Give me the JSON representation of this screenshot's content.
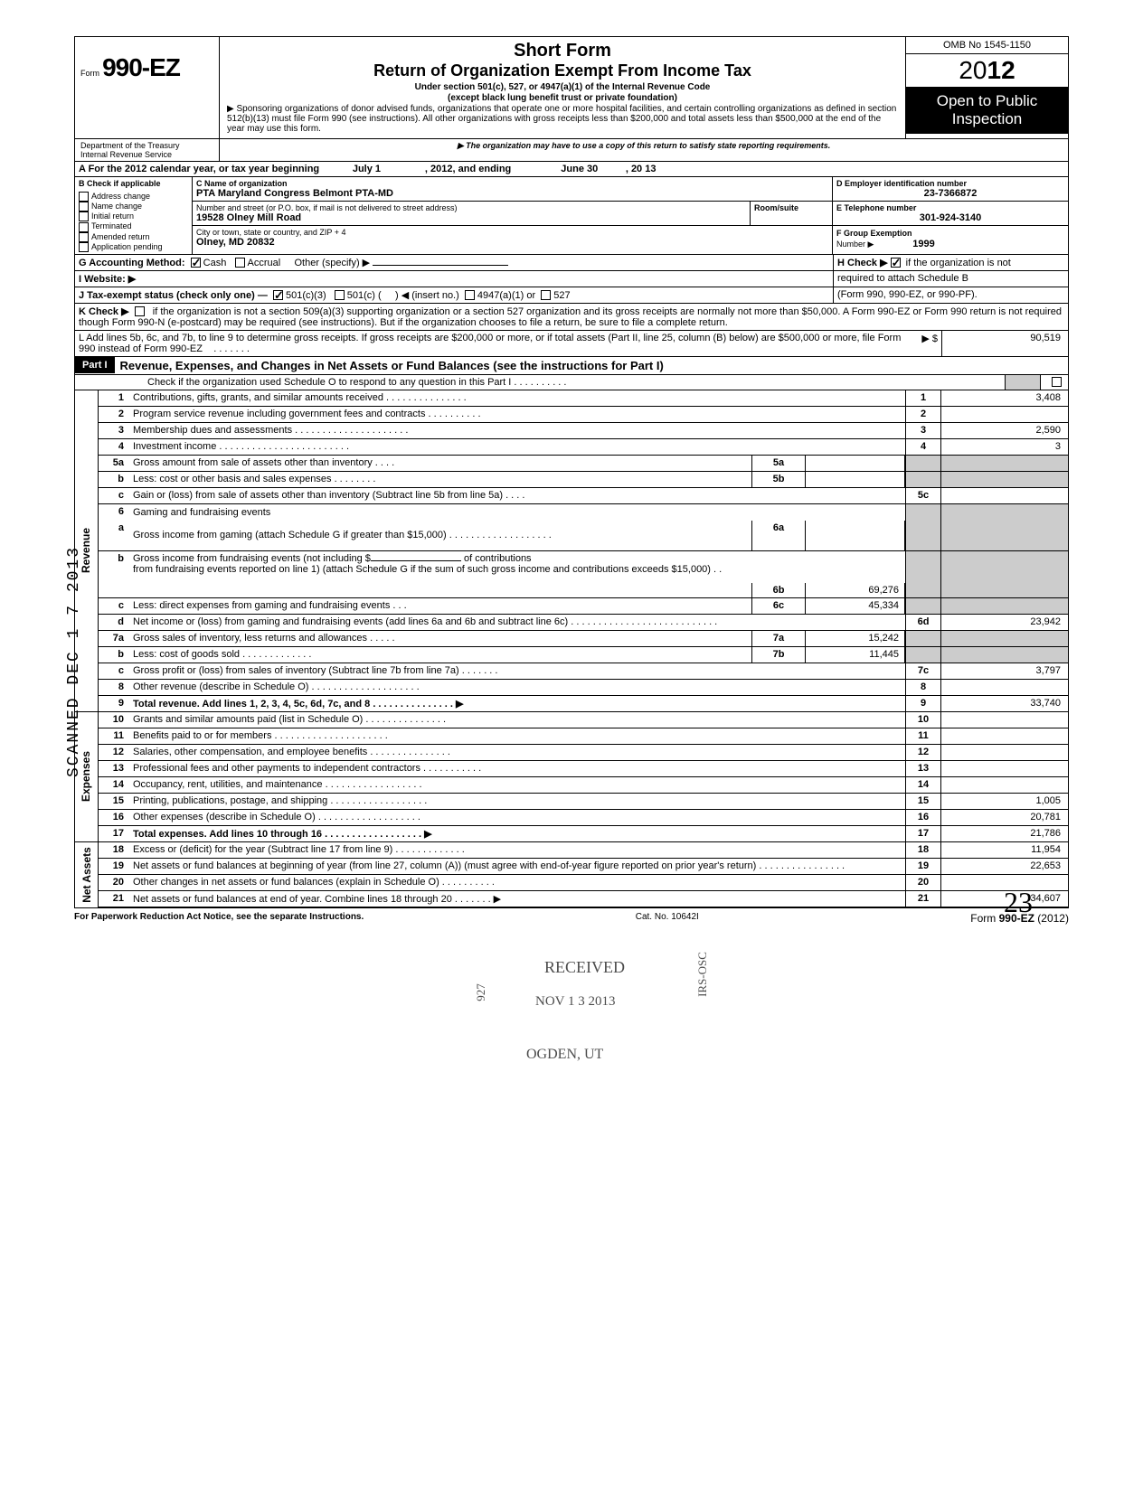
{
  "side_stamp": "SCANNED DEC 1 7 2013",
  "header": {
    "form_prefix": "Form",
    "form_number": "990-EZ",
    "title1": "Short Form",
    "title2": "Return of Organization Exempt From Income Tax",
    "sub1": "Under section 501(c), 527, or 4947(a)(1) of the Internal Revenue Code",
    "sub2": "(except black lung benefit trust or private foundation)",
    "sub3": "Sponsoring organizations of donor advised funds, organizations that operate one or more hospital facilities, and certain controlling organizations as defined in section 512(b)(13) must file Form 990 (see instructions). All other organizations with gross receipts less than $200,000 and total assets less than $500,000 at the end of the year may use this form.",
    "sub4": "The organization may have to use a copy of this return to satisfy state reporting requirements.",
    "omb": "OMB No  1545-1150",
    "year_prefix": "20",
    "year_bold": "12",
    "open1": "Open to Public",
    "open2": "Inspection",
    "dept1": "Department of the Treasury",
    "dept2": "Internal Revenue Service"
  },
  "line_a": {
    "label": "A For the 2012 calendar year, or tax year beginning",
    "begin": "July 1",
    "mid": ", 2012, and ending",
    "end": "June 30",
    "yr": ", 20   13"
  },
  "section_b": {
    "label": "B Check if applicable",
    "items": [
      "Address change",
      "Name change",
      "Initial return",
      "Terminated",
      "Amended return",
      "Application pending"
    ],
    "c_label": "C  Name of organization",
    "org_name": "PTA Maryland Congress Belmont PTA-MD",
    "addr_label": "Number and street (or P.O. box, if mail is not delivered to street address)",
    "room_label": "Room/suite",
    "street": "19528 Olney Mill Road",
    "city_label": "City or town, state or country, and ZIP + 4",
    "city": "Olney, MD 20832",
    "d_label": "D Employer identification number",
    "ein": "23-7366872",
    "e_label": "E  Telephone number",
    "phone": "301-924-3140",
    "f_label": "F  Group Exemption",
    "f_label2": "Number ▶",
    "group_num": "1999"
  },
  "line_g": {
    "label": "G  Accounting Method:",
    "cash": "Cash",
    "accrual": "Accrual",
    "other": "Other (specify) ▶"
  },
  "line_h": {
    "label": "H  Check ▶",
    "text": "if the organization is not",
    "text2": "required to attach Schedule B",
    "text3": "(Form 990, 990-EZ, or 990-PF)."
  },
  "line_i": {
    "label": "I   Website: ▶"
  },
  "line_j": {
    "label": "J  Tax-exempt status (check only one) —",
    "opt1": "501(c)(3)",
    "opt2": "501(c) (",
    "insert": ") ◀ (insert no.)",
    "opt3": "4947(a)(1) or",
    "opt4": "527"
  },
  "line_k": {
    "label": "K  Check ▶",
    "text": "if the organization is not a section 509(a)(3) supporting organization or a section 527 organization and its gross receipts are normally not more than $50,000. A Form 990-EZ or Form 990 return is not required though Form 990-N (e-postcard) may be required (see instructions). But if the organization chooses to file a return, be sure to file a complete return."
  },
  "line_l": {
    "text": "L  Add lines 5b, 6c, and 7b, to line 9 to determine gross receipts. If gross receipts are $200,000 or more, or if total assets (Part II, line 25, column (B) below) are $500,000 or more, file Form 990 instead of Form 990-EZ",
    "dots": ".   .   .   .   .   .   .",
    "arrow": "▶  $",
    "amount": "90,519"
  },
  "part1": {
    "label": "Part I",
    "title": "Revenue, Expenses, and Changes in Net Assets or Fund Balances (see the instructions for Part I)",
    "check": "Check if the organization used Schedule O to respond to any question in this Part I   .   .   .   .   .   .   .   .   .   ."
  },
  "vert": {
    "revenue": "Revenue",
    "expenses": "Expenses",
    "netassets": "Net Assets"
  },
  "lines": {
    "1": {
      "n": "1",
      "d": "Contributions, gifts, grants, and similar amounts received .   .   .   .   .   .   .   .   .   .   .   .   .   .   .",
      "box": "1",
      "amt": "3,408"
    },
    "2": {
      "n": "2",
      "d": "Program service revenue including government fees and contracts    .   .   .   .   .   .   .   .   .   .",
      "box": "2",
      "amt": ""
    },
    "3": {
      "n": "3",
      "d": "Membership dues and assessments .   .   .   .   .   .   .   .   .   .   .   .   .   .   .   .   .   .   .   .   .",
      "box": "3",
      "amt": "2,590"
    },
    "4": {
      "n": "4",
      "d": "Investment income     .   .   .   .   .   .   .   .   .   .   .   .   .   .   .   .   .   .   .   .   .   .   .   .",
      "box": "4",
      "amt": "3"
    },
    "5a": {
      "n": "5a",
      "d": "Gross amount from sale of assets other than inventory    .   .   .   .",
      "ib": "5a",
      "iv": ""
    },
    "5b": {
      "n": "b",
      "d": "Less: cost or other basis and sales expenses .   .   .   .   .   .   .   .",
      "ib": "5b",
      "iv": ""
    },
    "5c": {
      "n": "c",
      "d": "Gain or (loss) from sale of assets other than inventory (Subtract line 5b from line 5a) .   .   .   .",
      "box": "5c",
      "amt": ""
    },
    "6": {
      "n": "6",
      "d": "Gaming and fundraising events"
    },
    "6a": {
      "n": "a",
      "d": "Gross income from gaming (attach Schedule G if greater than $15,000) .   .   .   .   .   .   .   .   .   .   .   .   .   .   .   .   .   .   .",
      "ib": "6a",
      "iv": ""
    },
    "6b": {
      "n": "b",
      "d1": "Gross income from fundraising events (not including  $",
      "d2": "of contributions",
      "d3": "from fundraising events reported on line 1) (attach Schedule G if the sum of such gross income and contributions exceeds $15,000) .   .",
      "ib": "6b",
      "iv": "69,276"
    },
    "6c": {
      "n": "c",
      "d": "Less: direct expenses from gaming and fundraising events    .   .   .",
      "ib": "6c",
      "iv": "45,334"
    },
    "6d": {
      "n": "d",
      "d": "Net income or (loss) from gaming and fundraising events (add lines 6a and 6b and subtract line 6c)    .   .   .   .   .   .   .   .   .   .   .   .   .   .   .   .   .   .   .   .   .   .   .   .   .   .   .",
      "box": "6d",
      "amt": "23,942"
    },
    "7a": {
      "n": "7a",
      "d": "Gross sales of inventory, less returns and allowances   .   .   .   .   .",
      "ib": "7a",
      "iv": "15,242"
    },
    "7b": {
      "n": "b",
      "d": "Less: cost of goods sold      .   .   .   .   .   .   .   .   .   .   .   .   .",
      "ib": "7b",
      "iv": "11,445"
    },
    "7c": {
      "n": "c",
      "d": "Gross profit or (loss) from sales of inventory (Subtract line 7b from line 7a)   .   .   .   .   .   .   .",
      "box": "7c",
      "amt": "3,797"
    },
    "8": {
      "n": "8",
      "d": "Other revenue (describe in Schedule O) .   .   .   .   .   .   .   .   .   .   .   .   .   .   .   .   .   .   .   .",
      "box": "8",
      "amt": ""
    },
    "9": {
      "n": "9",
      "d": "Total revenue. Add lines 1, 2, 3, 4, 5c, 6d, 7c, and 8   .   .   .   .   .   .   .   .   .   .   .   .   .   .   . ▶",
      "box": "9",
      "amt": "33,740"
    },
    "10": {
      "n": "10",
      "d": "Grants and similar amounts paid (list in Schedule O)   .   .   .   .   .   .   .   .   .   .   .   .   .   .   .",
      "box": "10",
      "amt": ""
    },
    "11": {
      "n": "11",
      "d": "Benefits paid to or for members    .   .   .   .   .   .   .   .   .   .   .   .   .   .   .   .   .   .   .   .   .",
      "box": "11",
      "amt": ""
    },
    "12": {
      "n": "12",
      "d": "Salaries, other compensation, and employee benefits   .   .   .   .   .   .   .   .   .   .   .   .   .   .   .",
      "box": "12",
      "amt": ""
    },
    "13": {
      "n": "13",
      "d": "Professional fees and other payments to independent contractors   .   .   .   .   .   .   .   .   .   .   .",
      "box": "13",
      "amt": ""
    },
    "14": {
      "n": "14",
      "d": "Occupancy, rent, utilities, and maintenance    .   .   .   .   .   .   .   .   .   .   .   .   .   .   .   .   .   .",
      "box": "14",
      "amt": ""
    },
    "15": {
      "n": "15",
      "d": "Printing, publications, postage, and shipping .   .   .   .   .   .   .   .   .   .   .   .   .   .   .   .   .   .",
      "box": "15",
      "amt": "1,005"
    },
    "16": {
      "n": "16",
      "d": "Other expenses (describe in Schedule O)   .   .   .   .   .   .   .   .   .   .   .   .   .   .   .   .   .   .   .",
      "box": "16",
      "amt": "20,781"
    },
    "17": {
      "n": "17",
      "d": "Total expenses. Add lines 10 through 16   .   .   .   .   .   .   .   .   .   .   .   .   .   .   .   .   .   . ▶",
      "box": "17",
      "amt": "21,786"
    },
    "18": {
      "n": "18",
      "d": "Excess or (deficit) for the year (Subtract line 17 from line 9)    .   .   .   .   .   .   .   .   .   .   .   .   .",
      "box": "18",
      "amt": "11,954"
    },
    "19": {
      "n": "19",
      "d": "Net assets or fund balances at beginning of year (from line 27, column (A)) (must agree with end-of-year figure reported on prior year's return)    .   .   .   .   .   .   .   .   .   .   .   .   .   .   .   .",
      "box": "19",
      "amt": "22,653"
    },
    "20": {
      "n": "20",
      "d": "Other changes in net assets or fund balances (explain in Schedule O) .   .   .   .   .   .   .   .   .   .",
      "box": "20",
      "amt": ""
    },
    "21": {
      "n": "21",
      "d": "Net assets or fund balances at end of year. Combine lines 18 through 20    .   .   .   .   .   .   . ▶",
      "box": "21",
      "amt": "34,607"
    }
  },
  "stamps": {
    "received": "RECEIVED",
    "date": "NOV  1 3 2013",
    "ogden": "OGDEN, UT",
    "irs": "IRS-OSC",
    "num": "927"
  },
  "footer": {
    "left": "For Paperwork Reduction Act Notice, see the separate Instructions.",
    "mid": "Cat. No. 10642I",
    "right_prefix": "Form ",
    "right_form": "990-EZ",
    "right_year": " (2012)"
  },
  "page_num": "23"
}
